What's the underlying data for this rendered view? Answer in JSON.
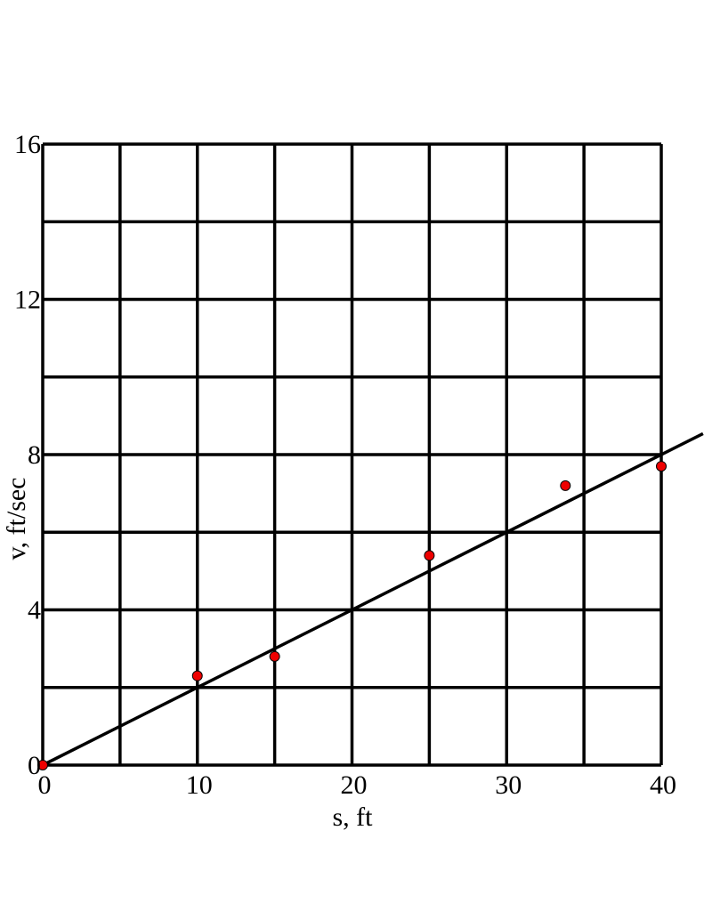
{
  "chart_data": {
    "type": "scatter",
    "xlabel": "s, ft",
    "ylabel": "v, ft/sec",
    "xlim": [
      0,
      40
    ],
    "ylim": [
      0,
      16
    ],
    "x_ticks": [
      0,
      10,
      20,
      30,
      40
    ],
    "x_tick_labels": [
      "0",
      "10",
      "20",
      "30",
      "40"
    ],
    "y_ticks": [
      0,
      4,
      8,
      12,
      16
    ],
    "y_tick_labels": [
      "0",
      "4",
      "8",
      "12",
      "16"
    ],
    "x_grid_step": 5,
    "y_grid_step": 2,
    "grid": true,
    "series": [
      {
        "kind": "points",
        "color": "#ee0000",
        "x": [
          0,
          10,
          15,
          25,
          33.8,
          40
        ],
        "y": [
          0,
          2.3,
          2.8,
          5.4,
          7.2,
          7.7
        ]
      },
      {
        "kind": "line",
        "color": "#000000",
        "slope": 0.2,
        "intercept": 0,
        "x_range": [
          0,
          42.7
        ]
      }
    ]
  }
}
